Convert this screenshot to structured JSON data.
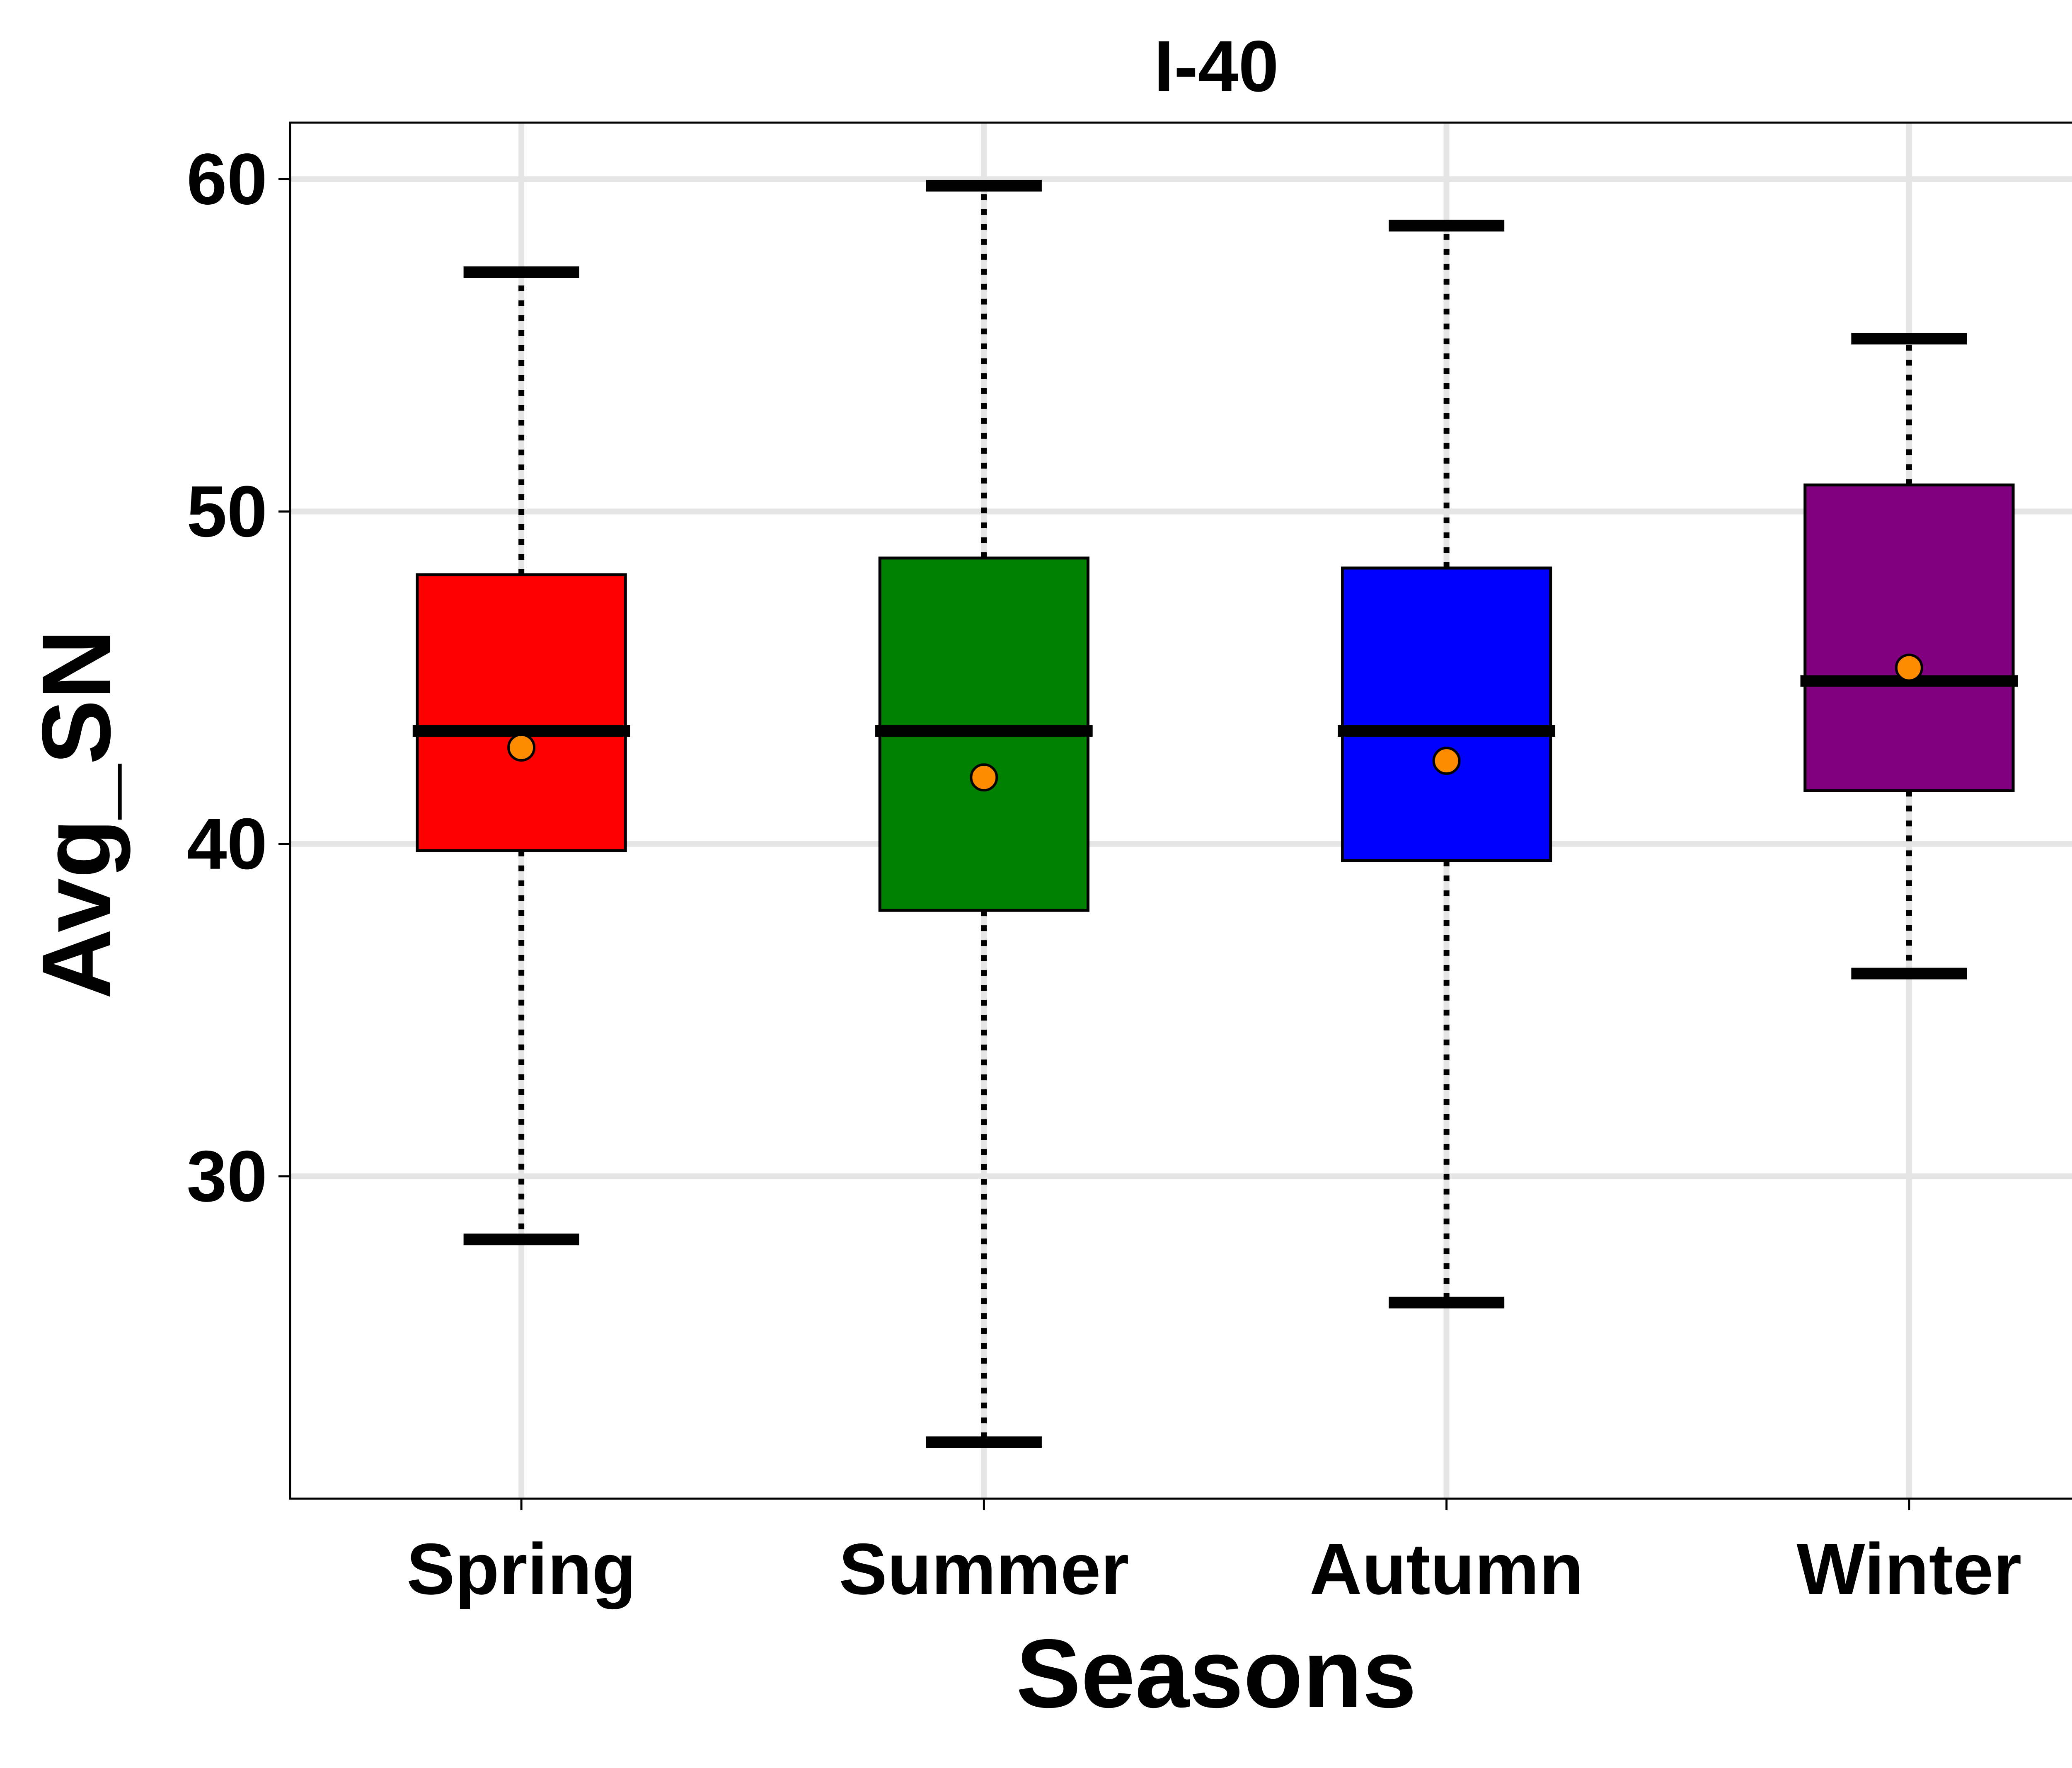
{
  "chart_data": {
    "type": "box",
    "title": "I-40",
    "xlabel": "Seasons",
    "ylabel": "Avg_SN",
    "ylim": [
      20.3,
      61.7
    ],
    "yticks": [
      30,
      40,
      50,
      60
    ],
    "grid": true,
    "categories": [
      "Spring",
      "Summer",
      "Autumn",
      "Winter"
    ],
    "boxes": [
      {
        "name": "Spring",
        "color": "#ff0000",
        "whisker_low": 28.1,
        "q1": 39.8,
        "median": 43.4,
        "q3": 48.1,
        "whisker_high": 57.2,
        "mean": 42.9
      },
      {
        "name": "Summer",
        "color": "#008000",
        "whisker_low": 22.0,
        "q1": 38.0,
        "median": 43.4,
        "q3": 48.6,
        "whisker_high": 59.8,
        "mean": 42.0
      },
      {
        "name": "Autumn",
        "color": "#0000ff",
        "whisker_low": 26.2,
        "q1": 39.5,
        "median": 43.4,
        "q3": 48.3,
        "whisker_high": 58.6,
        "mean": 42.5
      },
      {
        "name": "Winter",
        "color": "#800080",
        "whisker_low": 36.1,
        "q1": 41.6,
        "median": 44.9,
        "q3": 50.8,
        "whisker_high": 55.2,
        "mean": 45.3
      }
    ],
    "mean_marker_color": "#ff8c00"
  }
}
